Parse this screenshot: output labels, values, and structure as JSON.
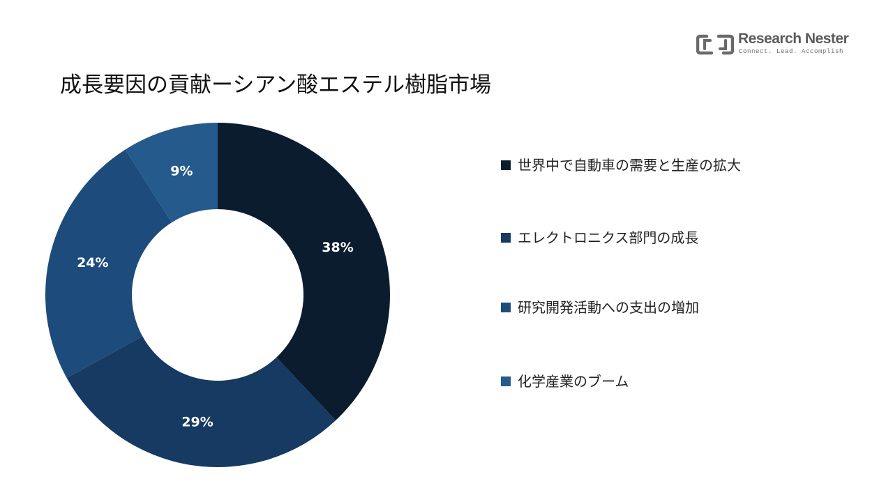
{
  "logo": {
    "name": "Research Nester",
    "tagline": "Connect. Lead. Accomplish"
  },
  "title": "成長要因の貢献ーシアン酸エステル樹脂市場",
  "colors": {
    "series": [
      "#0b1c2e",
      "#163a61",
      "#1d4b7b",
      "#255a8c"
    ],
    "label": "#ffffff",
    "logo": "#5b5b5b"
  },
  "chart_data": {
    "type": "pie",
    "variant": "donut",
    "title": "",
    "categories": [
      "世界中で自動車の需要と生産の拡大",
      "エレクトロニクス部門の成長",
      "研究開発活動への支出の増加",
      "化学産業のブーム"
    ],
    "values": [
      38,
      29,
      24,
      9
    ],
    "labels": [
      "38%",
      "29%",
      "24%",
      "9%"
    ],
    "legend": "right"
  }
}
